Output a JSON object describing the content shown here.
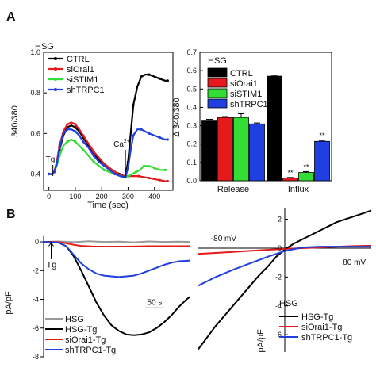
{
  "panels": {
    "A": "A",
    "B": "B"
  },
  "chart_data": [
    {
      "type": "line",
      "panel": "A",
      "legend_title": "HSG",
      "xlabel": "Time (sec)",
      "ylabel": "340/380",
      "xlim": [
        -20,
        470
      ],
      "ylim": [
        0.32,
        1.0
      ],
      "xticks": [
        0,
        100,
        200,
        300,
        400
      ],
      "yticks": [
        0.4,
        0.6,
        0.8,
        1.0
      ],
      "ytick_labels": [
        "0.4",
        "0.6",
        "0.8",
        "1.0"
      ],
      "annotations": [
        {
          "text": "Tg",
          "x": 15,
          "y": 0.39
        },
        {
          "text": "Ca",
          "sup": "2+",
          "x": 290,
          "y": 0.38
        }
      ],
      "legend_placement": "top-left",
      "series": [
        {
          "name": "CTRL",
          "color": "#000000",
          "x": [
            0,
            10,
            20,
            30,
            40,
            55,
            70,
            85,
            100,
            115,
            130,
            150,
            170,
            190,
            210,
            230,
            250,
            270,
            285,
            290,
            300,
            310,
            320,
            335,
            350,
            365,
            380,
            400,
            420,
            440,
            450
          ],
          "y": [
            0.4,
            0.4,
            0.41,
            0.45,
            0.52,
            0.59,
            0.63,
            0.64,
            0.63,
            0.61,
            0.58,
            0.54,
            0.5,
            0.47,
            0.45,
            0.43,
            0.41,
            0.4,
            0.39,
            0.39,
            0.46,
            0.6,
            0.74,
            0.83,
            0.88,
            0.89,
            0.89,
            0.88,
            0.87,
            0.86,
            0.86
          ]
        },
        {
          "name": "siOrai1",
          "color": "#e41a1c",
          "x": [
            0,
            10,
            20,
            30,
            40,
            55,
            70,
            85,
            100,
            115,
            130,
            150,
            170,
            190,
            210,
            230,
            250,
            270,
            285,
            290,
            300,
            320,
            340,
            360,
            380,
            400,
            420,
            440,
            450
          ],
          "y": [
            0.4,
            0.4,
            0.41,
            0.46,
            0.54,
            0.61,
            0.645,
            0.655,
            0.645,
            0.62,
            0.59,
            0.55,
            0.51,
            0.48,
            0.45,
            0.43,
            0.41,
            0.395,
            0.39,
            0.39,
            0.39,
            0.39,
            0.39,
            0.385,
            0.38,
            0.375,
            0.37,
            0.365,
            0.365
          ]
        },
        {
          "name": "siSTIM1",
          "color": "#33dd33",
          "x": [
            0,
            10,
            20,
            30,
            40,
            55,
            70,
            85,
            100,
            115,
            130,
            150,
            170,
            190,
            210,
            230,
            250,
            270,
            285,
            290,
            300,
            315,
            330,
            345,
            360,
            380,
            400,
            420,
            440,
            450
          ],
          "y": [
            0.4,
            0.4,
            0.41,
            0.44,
            0.49,
            0.54,
            0.56,
            0.57,
            0.56,
            0.54,
            0.52,
            0.49,
            0.46,
            0.44,
            0.42,
            0.41,
            0.4,
            0.39,
            0.385,
            0.385,
            0.39,
            0.4,
            0.41,
            0.42,
            0.44,
            0.44,
            0.43,
            0.42,
            0.42,
            0.42
          ]
        },
        {
          "name": "shTRPC1",
          "color": "#1f3fe0",
          "x": [
            0,
            10,
            20,
            30,
            40,
            55,
            70,
            85,
            100,
            115,
            130,
            150,
            170,
            190,
            210,
            230,
            250,
            270,
            285,
            290,
            300,
            310,
            320,
            335,
            350,
            365,
            380,
            400,
            420,
            440,
            450
          ],
          "y": [
            0.4,
            0.4,
            0.41,
            0.45,
            0.53,
            0.6,
            0.62,
            0.62,
            0.61,
            0.59,
            0.56,
            0.53,
            0.49,
            0.46,
            0.44,
            0.42,
            0.4,
            0.39,
            0.385,
            0.385,
            0.43,
            0.52,
            0.59,
            0.62,
            0.62,
            0.61,
            0.6,
            0.59,
            0.58,
            0.57,
            0.57
          ]
        }
      ]
    },
    {
      "type": "bar",
      "panel": "A",
      "legend_title": "HSG",
      "ylabel": "Δ 340/380",
      "categories": [
        "Release",
        "Influx"
      ],
      "ylim": [
        0,
        0.7
      ],
      "yticks": [
        0.0,
        0.1,
        0.2,
        0.3,
        0.4,
        0.5,
        0.6,
        0.7
      ],
      "ytick_labels": [
        "0.0",
        "0.1",
        "0.2",
        "0.3",
        "0.4",
        "0.5",
        "0.6",
        "0.7"
      ],
      "legend_placement": "top-left",
      "series": [
        {
          "name": "CTRL",
          "color": "#000000",
          "values": [
            0.33,
            0.57
          ],
          "errors": [
            0.005,
            0.005
          ],
          "marks": [
            "",
            ""
          ]
        },
        {
          "name": "siOrai1",
          "color": "#e41a1c",
          "values": [
            0.345,
            0.015
          ],
          "errors": [
            0.005,
            0.003
          ],
          "marks": [
            "",
            "**"
          ]
        },
        {
          "name": "siSTIM1",
          "color": "#33dd33",
          "values": [
            0.345,
            0.045
          ],
          "errors": [
            0.02,
            0.005
          ],
          "marks": [
            "",
            "**"
          ]
        },
        {
          "name": "shTRPC1",
          "color": "#1f3fe0",
          "values": [
            0.31,
            0.215
          ],
          "errors": [
            0.005,
            0.005
          ],
          "marks": [
            "",
            "**"
          ]
        }
      ]
    },
    {
      "type": "line",
      "panel": "B",
      "ylabel": "pA/pF",
      "xlim": [
        0,
        390
      ],
      "ylim": [
        -8,
        0.5
      ],
      "yticks": [
        0,
        -2,
        -4,
        -6,
        -8
      ],
      "ytick_labels": [
        "0",
        "-2",
        "-4",
        "-6",
        "-8"
      ],
      "scale_bar": "50 s",
      "annotations": [
        {
          "text": "Tg",
          "x": 20,
          "y": -0.6
        }
      ],
      "legend_placement": "bottom-left",
      "series": [
        {
          "name": "HSG",
          "color": "#999999",
          "x": [
            0,
            40,
            80,
            120,
            160,
            200,
            240,
            280,
            320,
            360,
            390
          ],
          "y": [
            0,
            0.03,
            -0.02,
            0.04,
            0,
            0.02,
            -0.03,
            0.03,
            0,
            0.02,
            0
          ]
        },
        {
          "name": "HSG-Tg",
          "color": "#000000",
          "x": [
            0,
            20,
            40,
            60,
            80,
            100,
            120,
            140,
            160,
            180,
            200,
            220,
            240,
            260,
            280,
            300,
            320,
            340,
            360,
            380,
            390
          ],
          "y": [
            0,
            0,
            -0.05,
            -0.3,
            -1.0,
            -2.0,
            -3.1,
            -4.2,
            -5.1,
            -5.8,
            -6.2,
            -6.45,
            -6.5,
            -6.45,
            -6.3,
            -6.0,
            -5.6,
            -5.1,
            -4.5,
            -4.0,
            -3.8
          ]
        },
        {
          "name": "siOrai1-Tg",
          "color": "#e41a1c",
          "x": [
            0,
            40,
            60,
            80,
            100,
            130,
            160,
            200,
            240,
            280,
            320,
            360,
            390
          ],
          "y": [
            0,
            -0.02,
            -0.1,
            -0.2,
            -0.28,
            -0.32,
            -0.33,
            -0.33,
            -0.32,
            -0.3,
            -0.3,
            -0.3,
            -0.3
          ]
        },
        {
          "name": "shTRPC1-Tg",
          "color": "#1f3fe0",
          "x": [
            0,
            40,
            60,
            80,
            100,
            120,
            140,
            160,
            180,
            200,
            220,
            240,
            260,
            280,
            300,
            320,
            340,
            360,
            390
          ],
          "y": [
            0,
            -0.05,
            -0.3,
            -0.9,
            -1.5,
            -1.9,
            -2.2,
            -2.35,
            -2.4,
            -2.45,
            -2.4,
            -2.35,
            -2.2,
            -2.0,
            -1.8,
            -1.6,
            -1.45,
            -1.35,
            -1.3
          ]
        }
      ]
    },
    {
      "type": "line",
      "panel": "B",
      "legend_title": "HSG",
      "ylabel": "pA/pF",
      "xlim": [
        -100,
        100
      ],
      "ylim": [
        -7.2,
        2.8
      ],
      "yticks": [
        2,
        0,
        -2,
        -4,
        -6
      ],
      "ytick_labels": [
        "2",
        "0",
        "-2",
        "-4",
        "-6"
      ],
      "voltage_labels": [
        "-80 mV",
        "80 mV"
      ],
      "legend_placement": "bottom-right",
      "series": [
        {
          "name": "HSG-Tg",
          "color": "#000000",
          "x": [
            -100,
            -90,
            -80,
            -70,
            -60,
            -50,
            -40,
            -30,
            -20,
            -10,
            0,
            10,
            20,
            30,
            40,
            50,
            60,
            70,
            80,
            90,
            100
          ],
          "y": [
            -7.0,
            -6.2,
            -5.4,
            -4.7,
            -4.0,
            -3.3,
            -2.6,
            -1.9,
            -1.3,
            -0.6,
            -0.1,
            0.3,
            0.6,
            0.9,
            1.2,
            1.5,
            1.8,
            2.0,
            2.2,
            2.4,
            2.6
          ]
        },
        {
          "name": "siOrai1-Tg",
          "color": "#e41a1c",
          "x": [
            -100,
            -80,
            -60,
            -40,
            -20,
            0,
            20,
            40,
            60,
            80,
            100
          ],
          "y": [
            -0.4,
            -0.33,
            -0.26,
            -0.19,
            -0.12,
            -0.05,
            0.0,
            0.05,
            0.1,
            0.14,
            0.17
          ]
        },
        {
          "name": "shTRPC1-Tg",
          "color": "#1f3fe0",
          "x": [
            -100,
            -80,
            -60,
            -40,
            -20,
            0,
            20,
            40,
            60,
            80,
            100
          ],
          "y": [
            -2.6,
            -2.0,
            -1.5,
            -1.05,
            -0.6,
            -0.2,
            0.05,
            0.1,
            0.1,
            0.1,
            0.1
          ]
        }
      ]
    }
  ]
}
